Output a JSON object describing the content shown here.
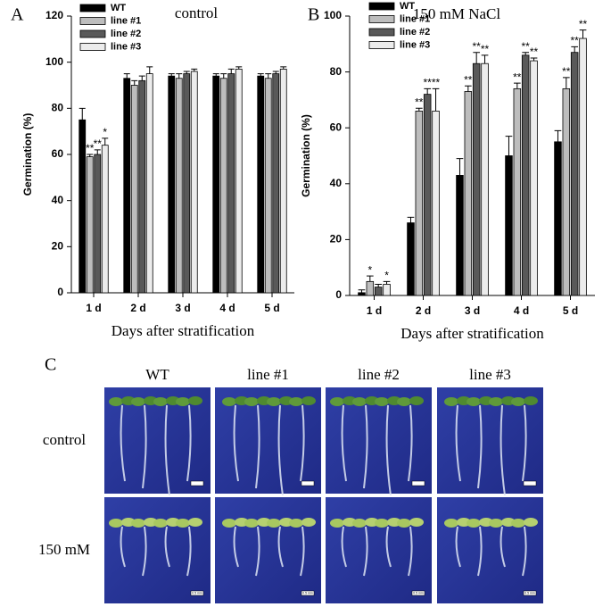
{
  "chart_data": [
    {
      "type": "bar",
      "panel": "A",
      "title": "control",
      "xlabel": "Days after stratification",
      "ylabel": "Germination (%)",
      "categories": [
        "1 d",
        "2 d",
        "3 d",
        "4 d",
        "5 d"
      ],
      "ylim": [
        0,
        120
      ],
      "yticks": [
        0,
        20,
        40,
        60,
        80,
        100,
        120
      ],
      "legend": "upper left",
      "series": [
        {
          "name": "WT",
          "color": "#000000",
          "values": [
            75,
            93,
            94,
            94,
            94
          ],
          "errors": [
            5,
            2,
            1,
            1,
            1
          ],
          "annotations": [
            null,
            null,
            null,
            null,
            null
          ]
        },
        {
          "name": "line #1",
          "color": "#bdbdbd",
          "values": [
            59,
            90,
            93,
            93,
            93
          ],
          "errors": [
            1,
            2,
            2,
            2,
            2
          ],
          "annotations": [
            "**",
            null,
            null,
            null,
            null
          ]
        },
        {
          "name": "line #2",
          "color": "#595959",
          "values": [
            60,
            92,
            95,
            95,
            95
          ],
          "errors": [
            2,
            2,
            1,
            2,
            1
          ],
          "annotations": [
            "**",
            null,
            null,
            null,
            null
          ]
        },
        {
          "name": "line #3",
          "color": "#ececec",
          "values": [
            64,
            95,
            96,
            97,
            97
          ],
          "errors": [
            3,
            3,
            1,
            1,
            1
          ],
          "annotations": [
            "*",
            null,
            null,
            null,
            null
          ]
        }
      ]
    },
    {
      "type": "bar",
      "panel": "B",
      "title": "150 mM NaCl",
      "xlabel": "Days after stratification",
      "ylabel": "Germination (%)",
      "categories": [
        "1 d",
        "2 d",
        "3 d",
        "4 d",
        "5 d"
      ],
      "ylim": [
        0,
        100
      ],
      "yticks": [
        0,
        20,
        40,
        60,
        80,
        100
      ],
      "legend": "upper left",
      "series": [
        {
          "name": "WT",
          "color": "#000000",
          "values": [
            1,
            26,
            43,
            50,
            55
          ],
          "errors": [
            1,
            2,
            6,
            7,
            4
          ],
          "annotations": [
            null,
            null,
            null,
            null,
            null
          ]
        },
        {
          "name": "line #1",
          "color": "#bdbdbd",
          "values": [
            5,
            66,
            73,
            74,
            74
          ],
          "errors": [
            2,
            1,
            2,
            2,
            4
          ],
          "annotations": [
            "*",
            "**",
            "**",
            "**",
            "**"
          ]
        },
        {
          "name": "line #2",
          "color": "#595959",
          "values": [
            3,
            72,
            83,
            86,
            87
          ],
          "errors": [
            1,
            2,
            4,
            1,
            2
          ],
          "annotations": [
            null,
            "**",
            "**",
            "**",
            "**"
          ]
        },
        {
          "name": "line #3",
          "color": "#ececec",
          "values": [
            4,
            66,
            83,
            84,
            92
          ],
          "errors": [
            1,
            8,
            3,
            1,
            3
          ],
          "annotations": [
            "*",
            "**",
            "**",
            "**",
            "**"
          ]
        }
      ]
    }
  ],
  "panel_c": {
    "panel": "C",
    "columns": [
      "WT",
      "line #1",
      "line #2",
      "line #3"
    ],
    "rows": [
      "control",
      "150 mM"
    ],
    "scale_bar_label": "0.5 mm"
  }
}
